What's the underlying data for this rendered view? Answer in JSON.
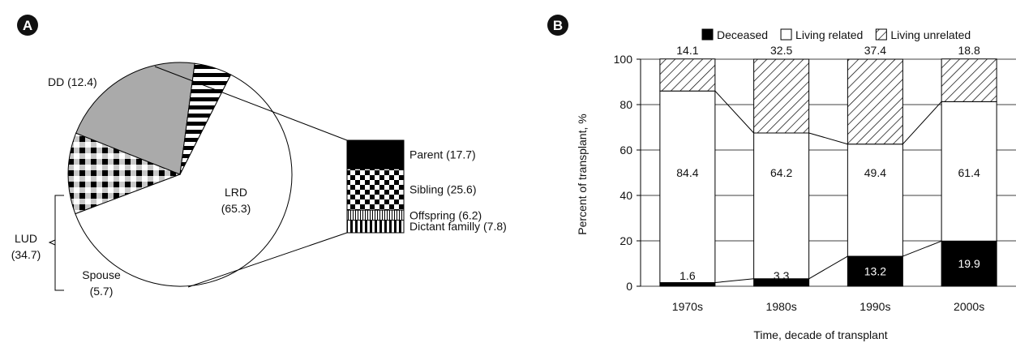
{
  "colors": {
    "black": "#000000",
    "white": "#ffffff",
    "gray": "#aaaaaa",
    "panel_badge": "#111111"
  },
  "panels": {
    "a_label": "A",
    "b_label": "B"
  },
  "pie": {
    "slices": [
      {
        "name": "LRD",
        "pct_label": "(65.3)",
        "label": "LRD"
      },
      {
        "name": "DD",
        "label": "DD (12.4)"
      },
      {
        "name": "Spouse",
        "label": "Spouse",
        "sub": "(5.7)"
      }
    ],
    "lud_label": "LUD",
    "lud_value": "(34.7)"
  },
  "breakdown": {
    "items": [
      {
        "label": "Parent (17.7)",
        "value": 17.7,
        "pattern": "solid-black"
      },
      {
        "label": "Sibling (25.6)",
        "value": 25.6,
        "pattern": "checker"
      },
      {
        "label": "Offspring (6.2)",
        "value": 6.2,
        "pattern": "fine-vertical-stripes"
      },
      {
        "label": "Dictant familly (7.8)",
        "value": 7.8,
        "pattern": "vertical-stripes"
      }
    ]
  },
  "chart_data": [
    {
      "type": "pie",
      "panel": "A",
      "slices": [
        {
          "label": "LRD",
          "value": 65.3,
          "pattern": "white"
        },
        {
          "label": "DD",
          "value": 12.4,
          "pattern": "checker"
        },
        {
          "label": "LUD",
          "value": 22.3,
          "pattern": "gray"
        },
        {
          "label": "Spouse",
          "value": 5.7,
          "pattern": "horizontal-stripes"
        }
      ],
      "group_labels": [
        {
          "label": "LUD",
          "value": 34.7
        }
      ]
    },
    {
      "type": "bar",
      "panel": "B",
      "stacked": true,
      "categories": [
        "1970s",
        "1980s",
        "1990s",
        "2000s"
      ],
      "series": [
        {
          "name": "Deceased",
          "values": [
            1.6,
            3.3,
            13.2,
            19.9
          ],
          "pattern": "solid-black"
        },
        {
          "name": "Living related",
          "values": [
            84.4,
            64.2,
            49.4,
            61.4
          ],
          "pattern": "white"
        },
        {
          "name": "Living unrelated",
          "values": [
            14.1,
            32.5,
            37.4,
            18.8
          ],
          "pattern": "diagonal-hatch"
        }
      ],
      "top_labels": [
        "14.1",
        "32.5",
        "37.4",
        "18.8"
      ],
      "mid_labels": [
        "84.4",
        "64.2",
        "49.4",
        "61.4"
      ],
      "bottom_labels": [
        "1.6",
        "3.3",
        "13.2",
        "19.9"
      ],
      "xlabel": "Time, decade of transplant",
      "ylabel": "Percent of transplant, %",
      "ylim": [
        0,
        100
      ],
      "yticks": [
        "0",
        "20",
        "40",
        "60",
        "80",
        "100"
      ],
      "grid": true,
      "legend_position": "top"
    }
  ]
}
